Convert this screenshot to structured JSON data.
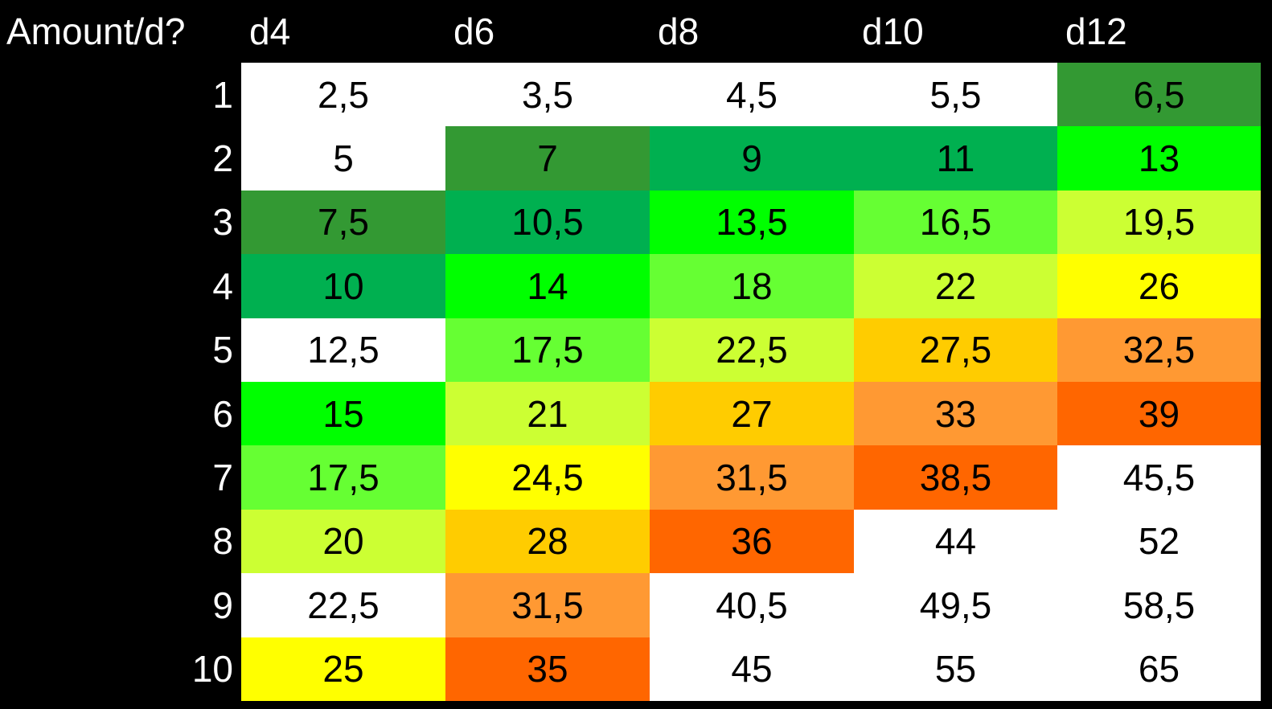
{
  "table": {
    "columns": [
      "Amount/d?",
      "d4",
      "d6",
      "d8",
      "d10",
      "d12"
    ],
    "rows": [
      [
        "1",
        "2,5",
        "3,5",
        "4,5",
        "5,5",
        "6,5"
      ],
      [
        "2",
        "5",
        "7",
        "9",
        "11",
        "13"
      ],
      [
        "3",
        "7,5",
        "10,5",
        "13,5",
        "16,5",
        "19,5"
      ],
      [
        "4",
        "10",
        "14",
        "18",
        "22",
        "26"
      ],
      [
        "5",
        "12,5",
        "17,5",
        "22,5",
        "27,5",
        "32,5"
      ],
      [
        "6",
        "15",
        "21",
        "27",
        "33",
        "39"
      ],
      [
        "7",
        "17,5",
        "24,5",
        "31,5",
        "38,5",
        "45,5"
      ],
      [
        "8",
        "20",
        "28",
        "36",
        "44",
        "52"
      ],
      [
        "9",
        "22,5",
        "31,5",
        "40,5",
        "49,5",
        "58,5"
      ],
      [
        "10",
        "25",
        "35",
        "45",
        "55",
        "65"
      ]
    ],
    "fills": [
      [
        "#ffffff",
        "#ffffff",
        "#ffffff",
        "#ffffff",
        "#339933"
      ],
      [
        "#ffffff",
        "#339933",
        "#00b050",
        "#00b050",
        "#00ff00"
      ],
      [
        "#339933",
        "#00b050",
        "#00ff00",
        "#66ff33",
        "#ccff33"
      ],
      [
        "#00b050",
        "#00ff00",
        "#66ff33",
        "#ccff33",
        "#ffff00"
      ],
      [
        "#ffffff",
        "#66ff33",
        "#ccff33",
        "#ffcc00",
        "#ff9933"
      ],
      [
        "#00ff00",
        "#ccff33",
        "#ffcc00",
        "#ff9933",
        "#ff6600"
      ],
      [
        "#66ff33",
        "#ffff00",
        "#ff9933",
        "#ff6600",
        "#ffffff"
      ],
      [
        "#ccff33",
        "#ffcc00",
        "#ff6600",
        "#ffffff",
        "#ffffff"
      ],
      [
        "#ffffff",
        "#ff9933",
        "#ffffff",
        "#ffffff",
        "#ffffff"
      ],
      [
        "#ffff00",
        "#ff6600",
        "#ffffff",
        "#ffffff",
        "#ffffff"
      ]
    ]
  }
}
